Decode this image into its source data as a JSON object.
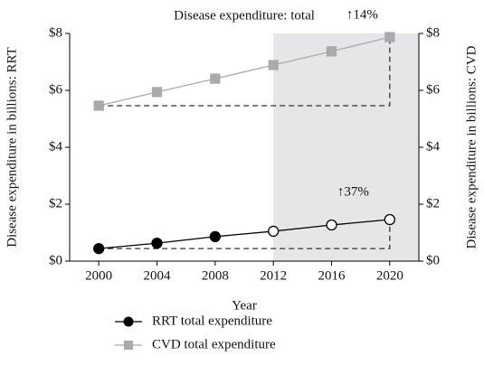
{
  "chart_data": {
    "type": "line",
    "title": "Disease expenditure: total",
    "x_label": "Year",
    "y_label": "Disease expenditure in billions: RRT",
    "y2_label": "Disease expenditure in billions: CVD",
    "x": [
      2000,
      2004,
      2008,
      2012,
      2016,
      2020
    ],
    "xlim": [
      1998,
      2022
    ],
    "xticks": [
      2000,
      2004,
      2008,
      2012,
      2016,
      2020
    ],
    "ylim": [
      0,
      8
    ],
    "yticks": [
      {
        "value": 0,
        "label": "$0"
      },
      {
        "value": 2,
        "label": "$2"
      },
      {
        "value": 4,
        "label": "$4"
      },
      {
        "value": 6,
        "label": "$6"
      },
      {
        "value": 8,
        "label": "$8"
      }
    ],
    "y2lim": [
      0,
      8
    ],
    "y2ticks": [
      {
        "value": 0,
        "label": "$0"
      },
      {
        "value": 2,
        "label": "$2"
      },
      {
        "value": 4,
        "label": "$4"
      },
      {
        "value": 6,
        "label": "$6"
      },
      {
        "value": 8,
        "label": "$8"
      }
    ],
    "shade_x": [
      2012,
      2022
    ],
    "series": [
      {
        "name": "RRT total expenditure",
        "color": "#000000",
        "marker": "circle",
        "open_markers_from": 2012,
        "values": [
          0.44,
          0.63,
          0.86,
          1.05,
          1.27,
          1.46
        ]
      },
      {
        "name": "CVD total expenditure",
        "color": "#aaaaaa",
        "marker": "square",
        "axis": "y2",
        "values": [
          5.46,
          5.94,
          6.41,
          6.89,
          7.37,
          7.87
        ]
      }
    ],
    "annotations": [
      "↑37%",
      "↑14%"
    ],
    "legend": "bottom"
  }
}
